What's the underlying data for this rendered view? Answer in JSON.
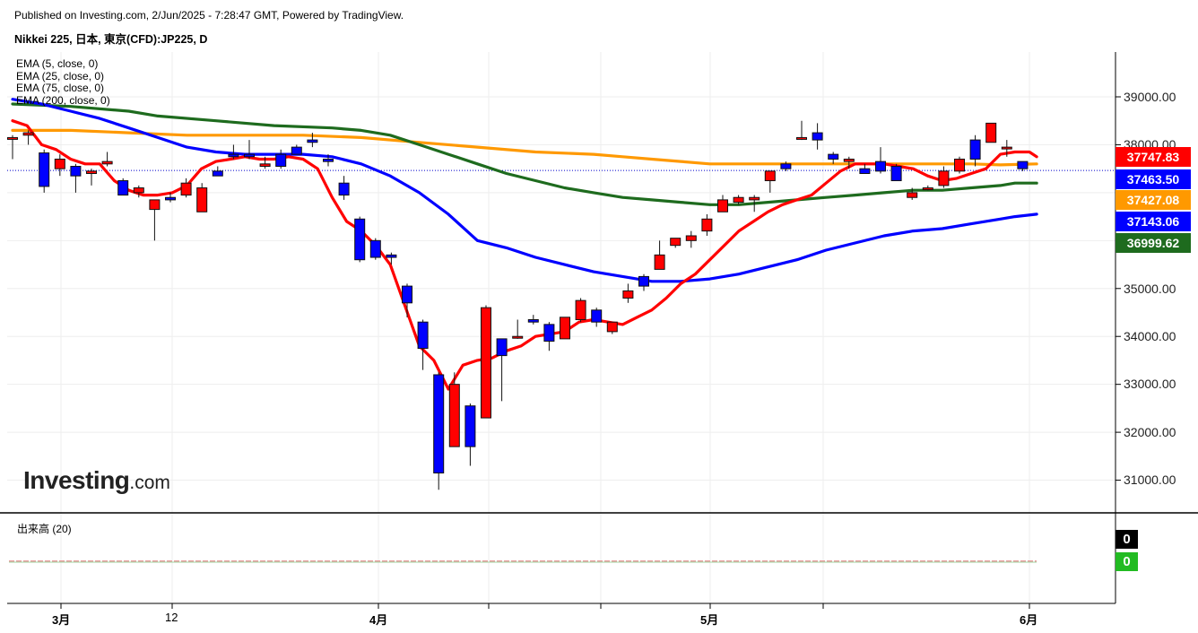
{
  "header": {
    "published": "Published on Investing.com, 2/Jun/2025 - 7:28:47 GMT, Powered by TradingView.",
    "symbol": "Nikkei 225, 日本, 東京(CFD):JP225, D"
  },
  "legend": [
    "EMA (5, close, 0)",
    "EMA (25, close, 0)",
    "EMA (75, close, 0)",
    "EMA (200, close, 0)"
  ],
  "volume_title": "出来高 (20)",
  "logo": {
    "brand": "Investing",
    "suffix": ".com"
  },
  "colors": {
    "up": "#ff0000",
    "down": "#0000ff",
    "ema5": "#ff0000",
    "ema25": "#0000ff",
    "ema75": "#1e6b1e",
    "ema200": "#ff9900",
    "price_line": "#0000cc",
    "grid": "#eeeeee"
  },
  "chart_data": {
    "type": "candlestick",
    "y_axis": {
      "ticks": [
        "39000.00",
        "38000.00",
        "35000.00",
        "34000.00",
        "33000.00",
        "32000.00",
        "31000.00"
      ],
      "range": [
        30300,
        39950
      ]
    },
    "x_axis": {
      "labels": [
        "3月",
        "12",
        "4月",
        "5月",
        "6月"
      ]
    },
    "last_price": "37463.50",
    "value_badges": [
      {
        "label": "37747.83",
        "color": "#ff0000"
      },
      {
        "label": "37463.50",
        "color": "#0000ff"
      },
      {
        "label": "37427.08",
        "color": "#ff9900"
      },
      {
        "label": "37143.06",
        "color": "#0000ff"
      },
      {
        "label": "36999.62",
        "color": "#1e6b1e"
      }
    ],
    "volume_badges": [
      {
        "label": "0",
        "color": "#000000"
      },
      {
        "label": "0",
        "color": "#22bb22"
      }
    ],
    "candles": [
      {
        "o": 38150,
        "h": 38200,
        "l": 37700,
        "c": 38150
      },
      {
        "o": 38200,
        "h": 38300,
        "l": 38000,
        "c": 38250
      },
      {
        "o": 37830,
        "h": 37900,
        "l": 37000,
        "c": 37130
      },
      {
        "o": 37500,
        "h": 37800,
        "l": 37350,
        "c": 37700
      },
      {
        "o": 37550,
        "h": 37600,
        "l": 37000,
        "c": 37350
      },
      {
        "o": 37400,
        "h": 37500,
        "l": 37150,
        "c": 37450
      },
      {
        "o": 37600,
        "h": 37850,
        "l": 37550,
        "c": 37650
      },
      {
        "o": 37250,
        "h": 37300,
        "l": 36950,
        "c": 36950
      },
      {
        "o": 37000,
        "h": 37150,
        "l": 36900,
        "c": 37100
      },
      {
        "o": 36650,
        "h": 36850,
        "l": 36000,
        "c": 36850
      },
      {
        "o": 36900,
        "h": 37000,
        "l": 36800,
        "c": 36850
      },
      {
        "o": 36950,
        "h": 37300,
        "l": 36900,
        "c": 37200
      },
      {
        "o": 36600,
        "h": 37200,
        "l": 36600,
        "c": 37100
      },
      {
        "o": 37450,
        "h": 37550,
        "l": 37350,
        "c": 37350
      },
      {
        "o": 37800,
        "h": 38000,
        "l": 37700,
        "c": 37750
      },
      {
        "o": 37800,
        "h": 38100,
        "l": 37700,
        "c": 37750
      },
      {
        "o": 37550,
        "h": 37750,
        "l": 37500,
        "c": 37600
      },
      {
        "o": 37800,
        "h": 37900,
        "l": 37500,
        "c": 37550
      },
      {
        "o": 37950,
        "h": 38000,
        "l": 37800,
        "c": 37800
      },
      {
        "o": 38100,
        "h": 38250,
        "l": 37950,
        "c": 38050
      },
      {
        "o": 37700,
        "h": 37800,
        "l": 37550,
        "c": 37650
      },
      {
        "o": 37200,
        "h": 37350,
        "l": 36850,
        "c": 36950
      },
      {
        "o": 36450,
        "h": 36500,
        "l": 35550,
        "c": 35600
      },
      {
        "o": 36000,
        "h": 36050,
        "l": 35600,
        "c": 35650
      },
      {
        "o": 35700,
        "h": 35750,
        "l": 35500,
        "c": 35650
      },
      {
        "o": 35050,
        "h": 35100,
        "l": 34400,
        "c": 34700
      },
      {
        "o": 34300,
        "h": 34350,
        "l": 33300,
        "c": 33750
      },
      {
        "o": 33200,
        "h": 33250,
        "l": 30800,
        "c": 31150
      },
      {
        "o": 31700,
        "h": 33250,
        "l": 31700,
        "c": 33000
      },
      {
        "o": 32550,
        "h": 32600,
        "l": 31300,
        "c": 31700
      },
      {
        "o": 32300,
        "h": 34650,
        "l": 32300,
        "c": 34600
      },
      {
        "o": 33950,
        "h": 33950,
        "l": 32650,
        "c": 33600
      },
      {
        "o": 34000,
        "h": 34350,
        "l": 33950,
        "c": 34000
      },
      {
        "o": 34350,
        "h": 34450,
        "l": 34250,
        "c": 34300
      },
      {
        "o": 34250,
        "h": 34300,
        "l": 33700,
        "c": 33900
      },
      {
        "o": 33950,
        "h": 34400,
        "l": 33950,
        "c": 34400
      },
      {
        "o": 34350,
        "h": 34800,
        "l": 34300,
        "c": 34750
      },
      {
        "o": 34550,
        "h": 34600,
        "l": 34200,
        "c": 34300
      },
      {
        "o": 34100,
        "h": 34300,
        "l": 34050,
        "c": 34300
      },
      {
        "o": 34800,
        "h": 35100,
        "l": 34700,
        "c": 34950
      },
      {
        "o": 35250,
        "h": 35300,
        "l": 34950,
        "c": 35050
      },
      {
        "o": 35400,
        "h": 36000,
        "l": 35400,
        "c": 35700
      },
      {
        "o": 35900,
        "h": 36050,
        "l": 35850,
        "c": 36050
      },
      {
        "o": 36000,
        "h": 36200,
        "l": 35850,
        "c": 36100
      },
      {
        "o": 36200,
        "h": 36550,
        "l": 36100,
        "c": 36450
      },
      {
        "o": 36600,
        "h": 36950,
        "l": 36600,
        "c": 36850
      },
      {
        "o": 36800,
        "h": 36950,
        "l": 36750,
        "c": 36900
      },
      {
        "o": 36850,
        "h": 36950,
        "l": 36600,
        "c": 36900
      },
      {
        "o": 37250,
        "h": 37450,
        "l": 37000,
        "c": 37450
      },
      {
        "o": 37600,
        "h": 37650,
        "l": 37450,
        "c": 37500
      },
      {
        "o": 38150,
        "h": 38500,
        "l": 38100,
        "c": 38150
      },
      {
        "o": 38250,
        "h": 38450,
        "l": 37900,
        "c": 38100
      },
      {
        "o": 37800,
        "h": 37850,
        "l": 37600,
        "c": 37700
      },
      {
        "o": 37650,
        "h": 37750,
        "l": 37500,
        "c": 37700
      },
      {
        "o": 37500,
        "h": 37600,
        "l": 37400,
        "c": 37400
      },
      {
        "o": 37650,
        "h": 37950,
        "l": 37400,
        "c": 37450
      },
      {
        "o": 37550,
        "h": 37600,
        "l": 37250,
        "c": 37250
      },
      {
        "o": 36900,
        "h": 37100,
        "l": 36850,
        "c": 37000
      },
      {
        "o": 37100,
        "h": 37150,
        "l": 37050,
        "c": 37100
      },
      {
        "o": 37150,
        "h": 37550,
        "l": 37100,
        "c": 37450
      },
      {
        "o": 37450,
        "h": 37750,
        "l": 37400,
        "c": 37700
      },
      {
        "o": 38100,
        "h": 38200,
        "l": 37550,
        "c": 37700
      },
      {
        "o": 38050,
        "h": 38450,
        "l": 38050,
        "c": 38450
      },
      {
        "o": 37950,
        "h": 38100,
        "l": 37750,
        "c": 37950
      },
      {
        "o": 37650,
        "h": 37650,
        "l": 37450,
        "c": 37500
      }
    ],
    "series": [
      {
        "name": "EMA (5, close, 0)",
        "color": "#ff0000",
        "points": [
          [
            0,
            38500
          ],
          [
            2,
            38400
          ],
          [
            4,
            38000
          ],
          [
            6,
            37900
          ],
          [
            8,
            37700
          ],
          [
            10,
            37600
          ],
          [
            12,
            37600
          ],
          [
            14,
            37250
          ],
          [
            16,
            37050
          ],
          [
            18,
            36950
          ],
          [
            20,
            36950
          ],
          [
            22,
            37000
          ],
          [
            24,
            37150
          ],
          [
            26,
            37500
          ],
          [
            28,
            37650
          ],
          [
            30,
            37700
          ],
          [
            32,
            37750
          ],
          [
            34,
            37700
          ],
          [
            36,
            37700
          ],
          [
            38,
            37750
          ],
          [
            40,
            37700
          ],
          [
            42,
            37500
          ],
          [
            44,
            36900
          ],
          [
            46,
            36400
          ],
          [
            48,
            36200
          ],
          [
            50,
            35900
          ],
          [
            52,
            35500
          ],
          [
            54,
            34650
          ],
          [
            56,
            33800
          ],
          [
            58,
            33500
          ],
          [
            60,
            32900
          ],
          [
            62,
            33400
          ],
          [
            64,
            33500
          ],
          [
            66,
            33550
          ],
          [
            68,
            33700
          ],
          [
            70,
            33800
          ],
          [
            72,
            34000
          ],
          [
            74,
            34050
          ],
          [
            76,
            34100
          ],
          [
            78,
            34300
          ],
          [
            80,
            34350
          ],
          [
            82,
            34300
          ],
          [
            84,
            34250
          ],
          [
            86,
            34400
          ],
          [
            88,
            34550
          ],
          [
            90,
            34800
          ],
          [
            92,
            35100
          ],
          [
            94,
            35300
          ],
          [
            96,
            35600
          ],
          [
            98,
            35900
          ],
          [
            100,
            36200
          ],
          [
            102,
            36400
          ],
          [
            104,
            36600
          ],
          [
            106,
            36750
          ],
          [
            108,
            36850
          ],
          [
            110,
            36950
          ],
          [
            112,
            37200
          ],
          [
            114,
            37450
          ],
          [
            116,
            37600
          ],
          [
            118,
            37600
          ],
          [
            120,
            37600
          ],
          [
            122,
            37550
          ],
          [
            124,
            37500
          ],
          [
            126,
            37350
          ],
          [
            128,
            37250
          ],
          [
            130,
            37300
          ],
          [
            132,
            37400
          ],
          [
            134,
            37500
          ],
          [
            136,
            37800
          ],
          [
            138,
            37850
          ],
          [
            140,
            37850
          ],
          [
            141,
            37750
          ]
        ]
      },
      {
        "name": "EMA (25, close, 0)",
        "color": "#0000ff",
        "points": [
          [
            0,
            38950
          ],
          [
            4,
            38850
          ],
          [
            8,
            38700
          ],
          [
            12,
            38550
          ],
          [
            16,
            38350
          ],
          [
            20,
            38150
          ],
          [
            24,
            37950
          ],
          [
            28,
            37850
          ],
          [
            32,
            37800
          ],
          [
            36,
            37800
          ],
          [
            40,
            37800
          ],
          [
            44,
            37750
          ],
          [
            48,
            37600
          ],
          [
            52,
            37350
          ],
          [
            56,
            37000
          ],
          [
            60,
            36550
          ],
          [
            64,
            36000
          ],
          [
            68,
            35850
          ],
          [
            72,
            35650
          ],
          [
            76,
            35500
          ],
          [
            80,
            35350
          ],
          [
            84,
            35250
          ],
          [
            88,
            35150
          ],
          [
            92,
            35150
          ],
          [
            96,
            35200
          ],
          [
            100,
            35300
          ],
          [
            104,
            35450
          ],
          [
            108,
            35600
          ],
          [
            112,
            35800
          ],
          [
            116,
            35950
          ],
          [
            120,
            36100
          ],
          [
            124,
            36200
          ],
          [
            128,
            36250
          ],
          [
            132,
            36350
          ],
          [
            136,
            36450
          ],
          [
            138,
            36500
          ],
          [
            141,
            36550
          ]
        ]
      },
      {
        "name": "EMA (75, close, 0)",
        "color": "#1e6b1e",
        "points": [
          [
            0,
            38850
          ],
          [
            8,
            38800
          ],
          [
            16,
            38700
          ],
          [
            20,
            38600
          ],
          [
            28,
            38500
          ],
          [
            36,
            38400
          ],
          [
            44,
            38350
          ],
          [
            48,
            38300
          ],
          [
            52,
            38200
          ],
          [
            56,
            38000
          ],
          [
            60,
            37800
          ],
          [
            64,
            37600
          ],
          [
            68,
            37400
          ],
          [
            72,
            37250
          ],
          [
            76,
            37100
          ],
          [
            80,
            37000
          ],
          [
            84,
            36900
          ],
          [
            88,
            36850
          ],
          [
            92,
            36800
          ],
          [
            96,
            36750
          ],
          [
            100,
            36750
          ],
          [
            104,
            36800
          ],
          [
            108,
            36850
          ],
          [
            112,
            36900
          ],
          [
            116,
            36950
          ],
          [
            120,
            37000
          ],
          [
            124,
            37050
          ],
          [
            128,
            37050
          ],
          [
            132,
            37100
          ],
          [
            136,
            37150
          ],
          [
            138,
            37200
          ],
          [
            141,
            37200
          ]
        ]
      },
      {
        "name": "EMA (200, close, 0)",
        "color": "#ff9900",
        "points": [
          [
            0,
            38300
          ],
          [
            8,
            38300
          ],
          [
            16,
            38250
          ],
          [
            24,
            38200
          ],
          [
            32,
            38200
          ],
          [
            40,
            38200
          ],
          [
            48,
            38150
          ],
          [
            56,
            38050
          ],
          [
            64,
            37950
          ],
          [
            72,
            37850
          ],
          [
            80,
            37800
          ],
          [
            84,
            37750
          ],
          [
            88,
            37700
          ],
          [
            92,
            37650
          ],
          [
            96,
            37600
          ],
          [
            100,
            37600
          ],
          [
            104,
            37600
          ],
          [
            108,
            37600
          ],
          [
            112,
            37600
          ],
          [
            116,
            37600
          ],
          [
            120,
            37600
          ],
          [
            124,
            37600
          ],
          [
            128,
            37600
          ],
          [
            132,
            37600
          ],
          [
            136,
            37580
          ],
          [
            141,
            37600
          ]
        ]
      }
    ],
    "volume": {
      "values": [
        0,
        0
      ]
    }
  }
}
